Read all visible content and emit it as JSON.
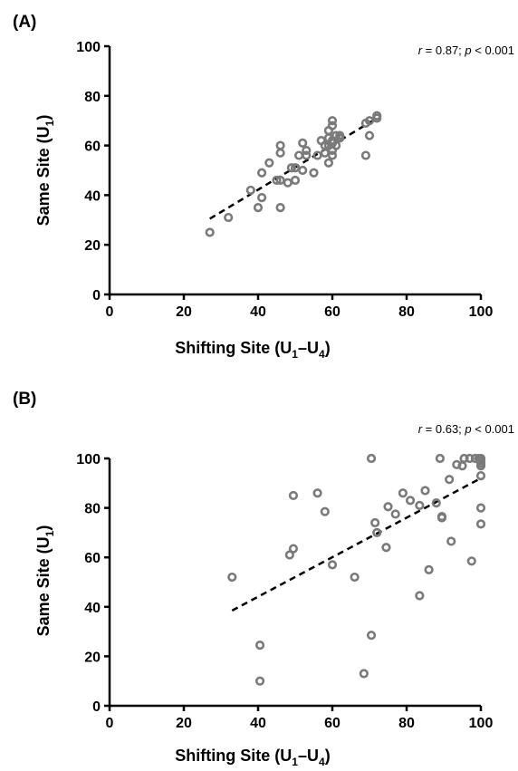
{
  "chart_data": [
    {
      "type": "scatter",
      "panel_label": "(A)",
      "stat": {
        "r_sym": "r",
        "r_val": " = 0.87; ",
        "p_sym": "p",
        "p_val": " < 0.001"
      },
      "xlabel": {
        "main": "Shifting Site (U",
        "sub1": "1",
        "mid": "–U",
        "sub2": "4",
        "end": ")"
      },
      "ylabel": {
        "main": "Same Site (U",
        "sub": "1",
        "end": ")"
      },
      "xlim": [
        0,
        100
      ],
      "ylim": [
        0,
        100
      ],
      "xticks": [
        "0",
        "20",
        "40",
        "60",
        "80",
        "100"
      ],
      "yticks": [
        "0",
        "20",
        "40",
        "60",
        "80",
        "100"
      ],
      "grid": false,
      "fit_line": {
        "x": [
          27,
          72
        ],
        "y": [
          30.5,
          71
        ]
      },
      "points": [
        [
          27,
          25
        ],
        [
          32,
          31
        ],
        [
          38,
          42
        ],
        [
          40,
          35
        ],
        [
          41,
          39
        ],
        [
          41,
          49
        ],
        [
          43,
          53
        ],
        [
          45,
          46
        ],
        [
          46,
          46
        ],
        [
          46,
          35
        ],
        [
          46,
          57
        ],
        [
          46,
          60
        ],
        [
          48,
          45
        ],
        [
          49,
          51
        ],
        [
          50,
          46
        ],
        [
          50,
          51
        ],
        [
          51,
          56
        ],
        [
          52,
          61
        ],
        [
          52,
          50
        ],
        [
          53,
          56
        ],
        [
          53,
          58
        ],
        [
          55,
          49
        ],
        [
          56,
          56
        ],
        [
          57,
          62
        ],
        [
          58,
          60
        ],
        [
          58,
          57
        ],
        [
          59,
          53
        ],
        [
          59,
          60
        ],
        [
          59,
          63
        ],
        [
          59,
          66
        ],
        [
          60,
          56
        ],
        [
          60,
          58
        ],
        [
          60,
          61
        ],
        [
          60,
          62
        ],
        [
          60,
          68
        ],
        [
          60,
          70
        ],
        [
          61,
          60
        ],
        [
          61,
          64
        ],
        [
          62,
          63
        ],
        [
          62,
          64
        ],
        [
          69,
          56
        ],
        [
          69,
          69
        ],
        [
          70,
          70
        ],
        [
          70,
          64
        ],
        [
          72,
          71
        ],
        [
          72,
          72
        ]
      ]
    },
    {
      "type": "scatter",
      "panel_label": "(B)",
      "stat": {
        "r_sym": "r",
        "r_val": " = 0.63; ",
        "p_sym": "p",
        "p_val": " < 0.001"
      },
      "xlabel": {
        "main": "Shifting Site (U",
        "sub1": "1",
        "mid": "–U",
        "sub2": "4",
        "end": ")"
      },
      "ylabel": {
        "main": "Same Site (U",
        "sub": "1",
        "end": ")"
      },
      "xlim": [
        0,
        100
      ],
      "ylim": [
        0,
        100
      ],
      "xticks": [
        "0",
        "20",
        "40",
        "60",
        "80",
        "100"
      ],
      "yticks": [
        "0",
        "20",
        "40",
        "60",
        "80",
        "100"
      ],
      "grid": false,
      "fit_line": {
        "x": [
          33,
          100
        ],
        "y": [
          38.5,
          92
        ]
      },
      "points": [
        [
          33,
          52
        ],
        [
          40.5,
          24.5
        ],
        [
          40.5,
          10
        ],
        [
          48.5,
          61
        ],
        [
          49.5,
          85
        ],
        [
          49.5,
          63.5
        ],
        [
          56,
          86
        ],
        [
          58,
          78.5
        ],
        [
          60,
          57
        ],
        [
          66,
          52
        ],
        [
          68.5,
          13
        ],
        [
          70.5,
          100
        ],
        [
          70.5,
          28.5
        ],
        [
          71.5,
          74
        ],
        [
          72,
          70
        ],
        [
          74.5,
          64
        ],
        [
          75,
          80.5
        ],
        [
          77,
          77.5
        ],
        [
          79,
          86
        ],
        [
          81,
          83
        ],
        [
          83.5,
          44.5
        ],
        [
          83.5,
          81
        ],
        [
          85,
          87
        ],
        [
          86,
          55
        ],
        [
          88,
          82
        ],
        [
          89,
          100
        ],
        [
          89.5,
          76
        ],
        [
          89.5,
          76.5
        ],
        [
          91.5,
          91.5
        ],
        [
          92,
          66.5
        ],
        [
          93.5,
          97.5
        ],
        [
          95,
          97
        ],
        [
          95.5,
          100
        ],
        [
          97,
          100
        ],
        [
          97.5,
          58.5
        ],
        [
          98.5,
          100
        ],
        [
          100,
          100
        ],
        [
          100,
          99
        ],
        [
          100,
          98
        ],
        [
          100,
          97
        ],
        [
          100,
          93
        ],
        [
          100,
          80
        ],
        [
          100,
          73.5
        ],
        [
          99.5,
          100
        ]
      ]
    }
  ]
}
